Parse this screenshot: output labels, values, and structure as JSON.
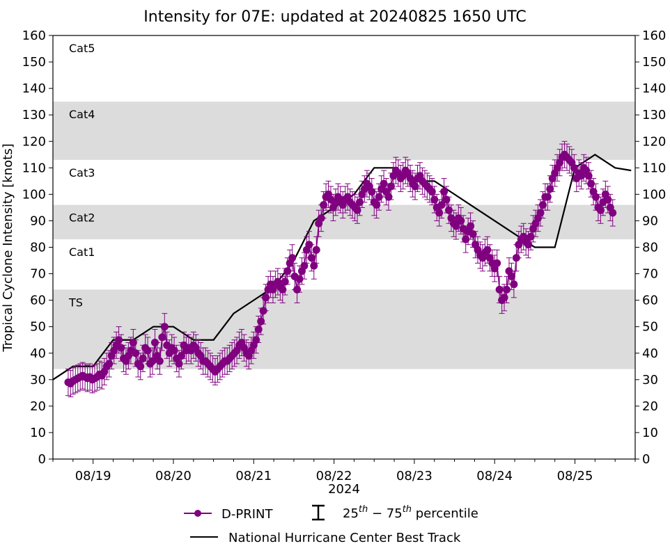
{
  "chart_data": {
    "type": "line",
    "title": "Intensity for 07E: updated at 20240825 1650 UTC",
    "ylabel": "Tropical Cyclone Intensity [knots]",
    "xlabel": "2024",
    "ylim": [
      0,
      160
    ],
    "xlim_days": [
      18.5,
      25.75
    ],
    "y_ticks": [
      0,
      10,
      20,
      30,
      40,
      50,
      60,
      70,
      80,
      90,
      100,
      110,
      120,
      130,
      140,
      150,
      160
    ],
    "x_ticks": [
      {
        "day": 19,
        "label": "08/19"
      },
      {
        "day": 20,
        "label": "08/20"
      },
      {
        "day": 21,
        "label": "08/21"
      },
      {
        "day": 22,
        "label": "08/22"
      },
      {
        "day": 23,
        "label": "08/23"
      },
      {
        "day": 24,
        "label": "08/24"
      },
      {
        "day": 25,
        "label": "08/25"
      }
    ],
    "category_bands": [
      {
        "label": "Cat5",
        "low": 135,
        "high": 160,
        "shaded": false
      },
      {
        "label": "Cat4",
        "low": 113,
        "high": 135,
        "shaded": true
      },
      {
        "label": "Cat3",
        "low": 96,
        "high": 113,
        "shaded": false
      },
      {
        "label": "Cat2",
        "low": 83,
        "high": 96,
        "shaded": true
      },
      {
        "label": "Cat1",
        "low": 64,
        "high": 83,
        "shaded": false
      },
      {
        "label": "TS",
        "low": 34,
        "high": 64,
        "shaded": true
      }
    ],
    "band_fill": "#dcdcdc",
    "series": [
      {
        "name": "National Hurricane Center Best Track",
        "color": "#000000",
        "points": [
          [
            18.5,
            30
          ],
          [
            18.75,
            35
          ],
          [
            19.0,
            35
          ],
          [
            19.25,
            45
          ],
          [
            19.5,
            45
          ],
          [
            19.75,
            50
          ],
          [
            20.0,
            50
          ],
          [
            20.25,
            45
          ],
          [
            20.5,
            45
          ],
          [
            20.75,
            55
          ],
          [
            21.0,
            60
          ],
          [
            21.25,
            65
          ],
          [
            21.5,
            75
          ],
          [
            21.75,
            90
          ],
          [
            22.0,
            95
          ],
          [
            22.25,
            100
          ],
          [
            22.5,
            110
          ],
          [
            22.75,
            110
          ],
          [
            23.0,
            105
          ],
          [
            23.25,
            105
          ],
          [
            23.5,
            100
          ],
          [
            23.75,
            95
          ],
          [
            24.0,
            90
          ],
          [
            24.25,
            85
          ],
          [
            24.5,
            80
          ],
          [
            24.75,
            80
          ],
          [
            25.0,
            110
          ],
          [
            25.25,
            115
          ],
          [
            25.5,
            110
          ],
          [
            25.7,
            109
          ]
        ]
      },
      {
        "name": "D-PRINT",
        "color": "#800080",
        "points": [
          [
            18.69,
            29
          ],
          [
            18.72,
            28.5
          ],
          [
            18.75,
            29.5
          ],
          [
            18.78,
            30
          ],
          [
            18.81,
            30.5
          ],
          [
            18.84,
            31
          ],
          [
            18.87,
            31.5
          ],
          [
            18.9,
            31
          ],
          [
            18.93,
            30.5
          ],
          [
            18.96,
            31
          ],
          [
            18.99,
            30
          ],
          [
            19.02,
            30.5
          ],
          [
            19.05,
            31
          ],
          [
            19.08,
            32
          ],
          [
            19.11,
            31.5
          ],
          [
            19.14,
            33
          ],
          [
            19.17,
            35
          ],
          [
            19.2,
            36
          ],
          [
            19.23,
            39
          ],
          [
            19.26,
            41
          ],
          [
            19.29,
            43
          ],
          [
            19.32,
            45
          ],
          [
            19.35,
            42
          ],
          [
            19.38,
            38
          ],
          [
            19.41,
            37
          ],
          [
            19.44,
            39
          ],
          [
            19.47,
            41
          ],
          [
            19.5,
            44
          ],
          [
            19.53,
            40
          ],
          [
            19.56,
            36
          ],
          [
            19.59,
            35
          ],
          [
            19.62,
            38
          ],
          [
            19.65,
            42
          ],
          [
            19.68,
            41
          ],
          [
            19.71,
            36
          ],
          [
            19.74,
            37
          ],
          [
            19.77,
            44
          ],
          [
            19.8,
            39
          ],
          [
            19.83,
            37
          ],
          [
            19.86,
            46
          ],
          [
            19.89,
            50
          ],
          [
            19.92,
            43
          ],
          [
            19.95,
            40
          ],
          [
            19.98,
            42
          ],
          [
            20.01,
            41
          ],
          [
            20.04,
            38
          ],
          [
            20.07,
            36
          ],
          [
            20.1,
            39
          ],
          [
            20.13,
            43
          ],
          [
            20.16,
            41
          ],
          [
            20.19,
            42
          ],
          [
            20.22,
            41
          ],
          [
            20.25,
            43
          ],
          [
            20.28,
            42
          ],
          [
            20.31,
            40
          ],
          [
            20.34,
            39
          ],
          [
            20.37,
            37
          ],
          [
            20.4,
            37
          ],
          [
            20.43,
            36
          ],
          [
            20.46,
            35
          ],
          [
            20.49,
            34
          ],
          [
            20.52,
            33
          ],
          [
            20.55,
            34
          ],
          [
            20.58,
            35
          ],
          [
            20.61,
            36
          ],
          [
            20.64,
            37
          ],
          [
            20.67,
            37
          ],
          [
            20.7,
            38
          ],
          [
            20.73,
            39
          ],
          [
            20.76,
            40
          ],
          [
            20.79,
            41
          ],
          [
            20.82,
            43
          ],
          [
            20.85,
            44
          ],
          [
            20.88,
            42
          ],
          [
            20.91,
            40
          ],
          [
            20.94,
            39
          ],
          [
            20.97,
            41
          ],
          [
            21.0,
            43
          ],
          [
            21.03,
            45
          ],
          [
            21.06,
            49
          ],
          [
            21.09,
            52
          ],
          [
            21.12,
            56
          ],
          [
            21.15,
            61
          ],
          [
            21.18,
            64
          ],
          [
            21.21,
            66
          ],
          [
            21.24,
            64
          ],
          [
            21.27,
            66
          ],
          [
            21.3,
            67
          ],
          [
            21.33,
            65
          ],
          [
            21.36,
            64
          ],
          [
            21.39,
            67
          ],
          [
            21.42,
            71
          ],
          [
            21.45,
            74
          ],
          [
            21.48,
            76
          ],
          [
            21.51,
            69
          ],
          [
            21.54,
            64
          ],
          [
            21.57,
            68
          ],
          [
            21.6,
            71
          ],
          [
            21.63,
            73
          ],
          [
            21.66,
            79
          ],
          [
            21.69,
            81
          ],
          [
            21.72,
            76
          ],
          [
            21.75,
            73
          ],
          [
            21.78,
            79
          ],
          [
            21.81,
            89
          ],
          [
            21.84,
            91
          ],
          [
            21.87,
            96
          ],
          [
            21.9,
            99
          ],
          [
            21.93,
            100
          ],
          [
            21.96,
            98
          ],
          [
            21.99,
            95
          ],
          [
            22.02,
            97
          ],
          [
            22.05,
            99
          ],
          [
            22.08,
            98
          ],
          [
            22.11,
            96
          ],
          [
            22.14,
            98
          ],
          [
            22.17,
            99
          ],
          [
            22.2,
            97
          ],
          [
            22.23,
            96
          ],
          [
            22.26,
            95
          ],
          [
            22.29,
            94
          ],
          [
            22.32,
            97
          ],
          [
            22.35,
            100
          ],
          [
            22.38,
            102
          ],
          [
            22.41,
            104
          ],
          [
            22.44,
            103
          ],
          [
            22.47,
            101
          ],
          [
            22.5,
            97
          ],
          [
            22.53,
            96
          ],
          [
            22.56,
            99
          ],
          [
            22.59,
            102
          ],
          [
            22.62,
            104
          ],
          [
            22.65,
            101
          ],
          [
            22.68,
            99
          ],
          [
            22.71,
            103
          ],
          [
            22.74,
            107
          ],
          [
            22.77,
            109
          ],
          [
            22.8,
            108
          ],
          [
            22.83,
            106
          ],
          [
            22.86,
            107
          ],
          [
            22.89,
            109
          ],
          [
            22.92,
            108
          ],
          [
            22.95,
            106
          ],
          [
            22.98,
            104
          ],
          [
            23.01,
            103
          ],
          [
            23.04,
            106
          ],
          [
            23.07,
            107
          ],
          [
            23.1,
            105
          ],
          [
            23.13,
            104
          ],
          [
            23.16,
            103
          ],
          [
            23.19,
            102
          ],
          [
            23.22,
            101
          ],
          [
            23.25,
            98
          ],
          [
            23.28,
            95
          ],
          [
            23.31,
            93
          ],
          [
            23.34,
            96
          ],
          [
            23.37,
            101
          ],
          [
            23.4,
            98
          ],
          [
            23.43,
            94
          ],
          [
            23.46,
            91
          ],
          [
            23.49,
            89
          ],
          [
            23.52,
            88
          ],
          [
            23.55,
            91
          ],
          [
            23.58,
            90
          ],
          [
            23.61,
            87
          ],
          [
            23.64,
            83
          ],
          [
            23.67,
            86
          ],
          [
            23.7,
            88
          ],
          [
            23.73,
            85
          ],
          [
            23.76,
            81
          ],
          [
            23.79,
            79
          ],
          [
            23.82,
            77
          ],
          [
            23.85,
            76
          ],
          [
            23.88,
            78
          ],
          [
            23.91,
            79
          ],
          [
            23.94,
            76
          ],
          [
            23.97,
            74
          ],
          [
            24.0,
            72
          ],
          [
            24.03,
            74
          ],
          [
            24.06,
            64
          ],
          [
            24.09,
            60
          ],
          [
            24.12,
            61
          ],
          [
            24.15,
            64
          ],
          [
            24.18,
            71
          ],
          [
            24.21,
            69
          ],
          [
            24.24,
            66
          ],
          [
            24.27,
            76
          ],
          [
            24.3,
            81
          ],
          [
            24.33,
            83
          ],
          [
            24.36,
            84
          ],
          [
            24.39,
            82
          ],
          [
            24.42,
            81
          ],
          [
            24.45,
            84
          ],
          [
            24.48,
            87
          ],
          [
            24.51,
            89
          ],
          [
            24.54,
            91
          ],
          [
            24.57,
            93
          ],
          [
            24.6,
            96
          ],
          [
            24.63,
            99
          ],
          [
            24.66,
            99
          ],
          [
            24.69,
            102
          ],
          [
            24.72,
            106
          ],
          [
            24.75,
            108
          ],
          [
            24.78,
            110
          ],
          [
            24.81,
            112
          ],
          [
            24.84,
            114
          ],
          [
            24.87,
            115
          ],
          [
            24.9,
            114
          ],
          [
            24.93,
            113
          ],
          [
            24.96,
            112
          ],
          [
            24.99,
            110
          ],
          [
            25.02,
            106
          ],
          [
            25.05,
            108
          ],
          [
            25.08,
            107
          ],
          [
            25.11,
            110
          ],
          [
            25.14,
            109
          ],
          [
            25.17,
            107
          ],
          [
            25.2,
            104
          ],
          [
            25.23,
            101
          ],
          [
            25.26,
            99
          ],
          [
            25.29,
            95
          ],
          [
            25.32,
            94
          ],
          [
            25.35,
            97
          ],
          [
            25.38,
            100
          ],
          [
            25.41,
            98
          ],
          [
            25.44,
            95
          ],
          [
            25.47,
            93
          ]
        ]
      }
    ],
    "legend": {
      "dprint_label": "D-PRINT",
      "percentile_prefix": "25",
      "percentile_sup1": "th",
      "percentile_mid": " − 75",
      "percentile_sup2": "th",
      "percentile_suffix": " percentile",
      "best_track_label": "National Hurricane Center Best Track"
    }
  }
}
